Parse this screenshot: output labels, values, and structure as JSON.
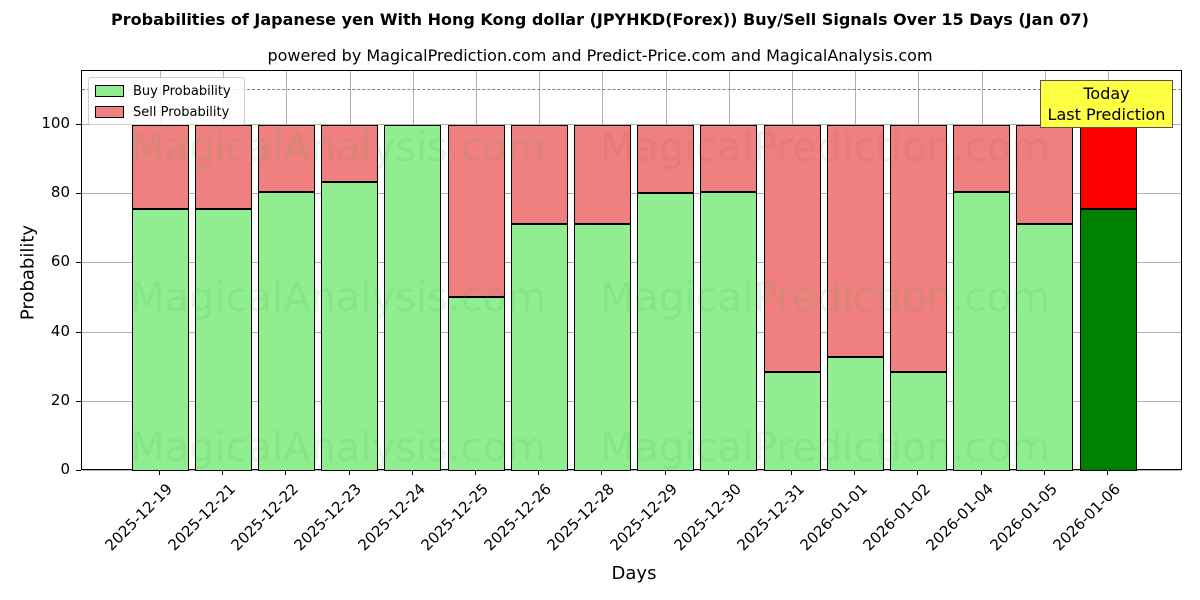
{
  "chart_data": {
    "type": "bar",
    "stacked": true,
    "title": "Probabilities of Japanese yen With Hong Kong dollar (JPYHKD(Forex)) Buy/Sell Signals Over 15 Days (Jan 07)",
    "subtitle": "powered by MagicalPrediction.com and Predict-Price.com and MagicalAnalysis.com",
    "xlabel": "Days",
    "ylabel": "Probability",
    "ylim": [
      0,
      115
    ],
    "yticks": [
      0,
      20,
      40,
      60,
      80,
      100
    ],
    "grid": true,
    "legend_position": "upper left",
    "reference_line": {
      "y": 110,
      "style": "dashed",
      "color": "#808080"
    },
    "categories": [
      "2025-12-19",
      "2025-12-21",
      "2025-12-22",
      "2025-12-23",
      "2025-12-24",
      "2025-12-25",
      "2025-12-26",
      "2025-12-28",
      "2025-12-29",
      "2025-12-30",
      "2025-12-31",
      "2026-01-01",
      "2026-01-02",
      "2026-01-04",
      "2026-01-05",
      "2026-01-06"
    ],
    "series": [
      {
        "name": "Buy Probability",
        "color": "#90ee90",
        "values": [
          75.7,
          75.7,
          80.6,
          83.5,
          100,
          50.3,
          71.4,
          71.4,
          80.3,
          80.6,
          28.6,
          33.0,
          28.6,
          80.6,
          71.4,
          75.7
        ]
      },
      {
        "name": "Sell Probability",
        "color": "#f08080",
        "values": [
          24.3,
          24.3,
          19.4,
          16.5,
          0,
          49.7,
          28.6,
          28.6,
          19.7,
          19.4,
          71.4,
          67.0,
          71.4,
          19.4,
          28.6,
          24.3
        ]
      }
    ],
    "highlight": {
      "index": 15,
      "buy_color": "#008000",
      "sell_color": "#ff0000"
    },
    "annotation": {
      "text_line1": "Today",
      "text_line2": "Last Prediction",
      "background": "#ffff44"
    },
    "watermarks": [
      "MagicalAnalysis.com",
      "MagicalPrediction.com"
    ]
  }
}
